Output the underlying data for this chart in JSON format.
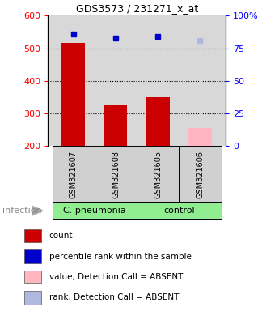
{
  "title": "GDS3573 / 231271_x_at",
  "samples": [
    "GSM321607",
    "GSM321608",
    "GSM321605",
    "GSM321606"
  ],
  "counts": [
    515,
    325,
    350,
    255
  ],
  "count_absent": [
    false,
    false,
    false,
    true
  ],
  "percentile_ranks": [
    86,
    83,
    84,
    81
  ],
  "rank_absent": [
    false,
    false,
    false,
    true
  ],
  "group_spans": [
    [
      0,
      1,
      "C. pneumonia"
    ],
    [
      2,
      3,
      "control"
    ]
  ],
  "ylim_left": [
    200,
    600
  ],
  "ylim_right": [
    0,
    100
  ],
  "yticks_left": [
    200,
    300,
    400,
    500,
    600
  ],
  "yticks_right": [
    0,
    25,
    50,
    75,
    100
  ],
  "bar_color_present": "#cc0000",
  "bar_color_absent": "#ffb6c1",
  "dot_color_present": "#0000cc",
  "dot_color_absent": "#b0b8e0",
  "bar_width": 0.55,
  "figsize": [
    3.4,
    3.84
  ],
  "dpi": 100,
  "background_plot": "#d8d8d8",
  "background_sample": "#d0d0d0",
  "background_group": "#90EE90",
  "infection_label": "infection",
  "legend_items": [
    {
      "color": "#cc0000",
      "label": "count"
    },
    {
      "color": "#0000cc",
      "label": "percentile rank within the sample"
    },
    {
      "color": "#ffb6c1",
      "label": "value, Detection Call = ABSENT"
    },
    {
      "color": "#b0b8e0",
      "label": "rank, Detection Call = ABSENT"
    }
  ]
}
